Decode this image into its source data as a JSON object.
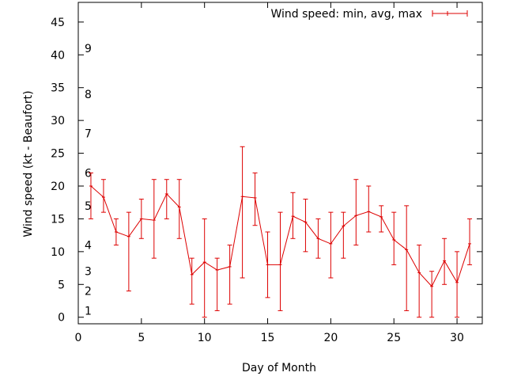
{
  "chart_data": {
    "type": "line",
    "title": "",
    "xlabel": "Day of Month",
    "ylabel": "Wind speed (kt - Beaufort)",
    "xlim": [
      0,
      32
    ],
    "ylim": [
      -1,
      48
    ],
    "xticks": [
      0,
      5,
      10,
      15,
      20,
      25,
      30
    ],
    "yticks": [
      0,
      5,
      10,
      15,
      20,
      25,
      30,
      35,
      40,
      45
    ],
    "grid": false,
    "legend_position": "top-right",
    "series": [
      {
        "name": "Wind speed: min, avg, max",
        "color": "#dd0000",
        "x": [
          1,
          2,
          3,
          4,
          5,
          6,
          7,
          8,
          9,
          10,
          11,
          12,
          13,
          14,
          15,
          16,
          17,
          18,
          19,
          20,
          21,
          22,
          23,
          24,
          25,
          26,
          27,
          28,
          29,
          30,
          31
        ],
        "avg": [
          20,
          18.3,
          13,
          12.3,
          15,
          14.8,
          18.8,
          16.8,
          6.5,
          8.4,
          7.2,
          7.7,
          18.4,
          18.2,
          8,
          8,
          15.4,
          14.5,
          12,
          11.2,
          13.9,
          15.5,
          16.1,
          15.3,
          11.8,
          10.3,
          6.8,
          4.7,
          8.6,
          5.3,
          11.2
        ],
        "min": [
          15,
          16,
          11,
          4,
          12,
          9,
          15,
          12,
          2,
          0,
          1,
          2,
          6,
          14,
          3,
          1,
          12,
          10,
          9,
          6,
          9,
          11,
          13,
          13,
          8,
          1,
          0,
          0,
          5,
          0,
          8
        ],
        "max": [
          22,
          21,
          15,
          16,
          18,
          21,
          21,
          21,
          9,
          15,
          9,
          11,
          26,
          22,
          13,
          16,
          19,
          18,
          15,
          16,
          16,
          21,
          20,
          17,
          16,
          17,
          11,
          7,
          12,
          10,
          15
        ]
      }
    ],
    "beaufort_labels": [
      {
        "label": "1",
        "y": 1
      },
      {
        "label": "2",
        "y": 4
      },
      {
        "label": "3",
        "y": 7
      },
      {
        "label": "4",
        "y": 11
      },
      {
        "label": "5",
        "y": 17
      },
      {
        "label": "6",
        "y": 22
      },
      {
        "label": "7",
        "y": 28
      },
      {
        "label": "8",
        "y": 34
      },
      {
        "label": "9",
        "y": 41
      }
    ]
  }
}
